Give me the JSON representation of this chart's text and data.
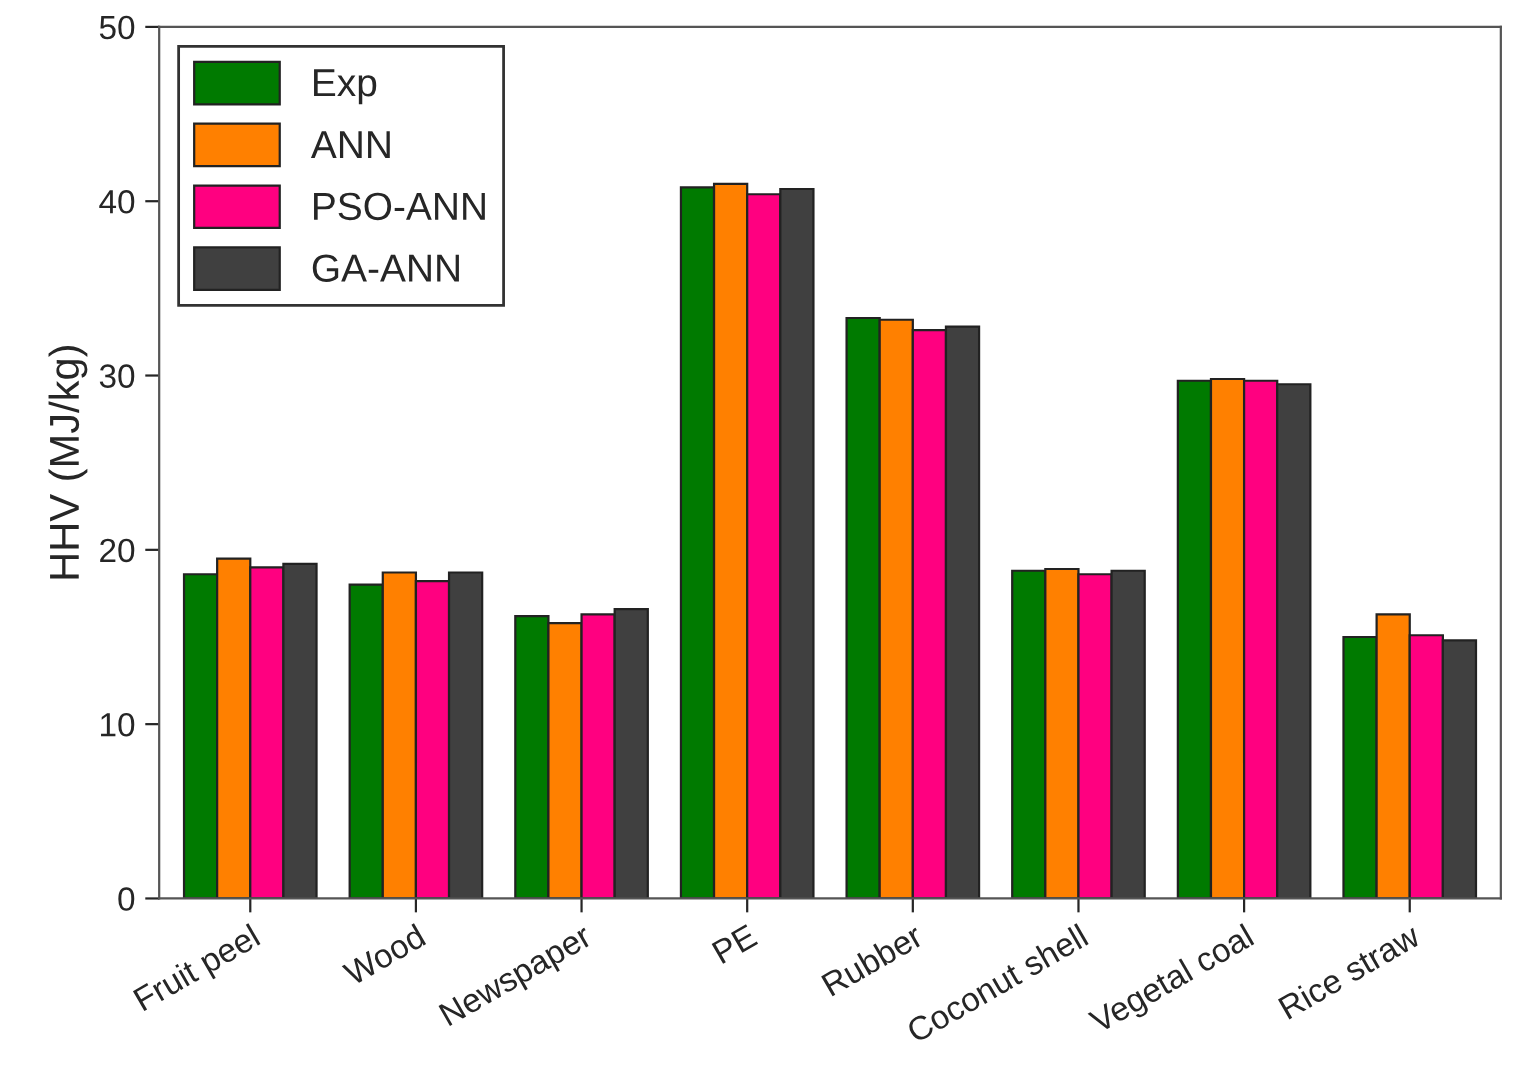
{
  "chart_data": {
    "type": "bar",
    "ylabel": "HHV (MJ/kg)",
    "categories": [
      "Fruit peel",
      "Wood",
      "Newspaper",
      "PE",
      "Rubber",
      "Coconut shell",
      "Vegetal coal",
      "Rice straw"
    ],
    "series": [
      {
        "name": "Exp",
        "color": "#007a00",
        "values": [
          18.6,
          18.0,
          16.2,
          40.8,
          33.3,
          18.8,
          29.7,
          15.0
        ]
      },
      {
        "name": "ANN",
        "color": "#ff8000",
        "values": [
          19.5,
          18.7,
          15.8,
          41.0,
          33.2,
          18.9,
          29.8,
          16.3
        ]
      },
      {
        "name": "PSO-ANN",
        "color": "#ff0080",
        "values": [
          19.0,
          18.2,
          16.3,
          40.4,
          32.6,
          18.6,
          29.7,
          15.1
        ]
      },
      {
        "name": "GA-ANN",
        "color": "#404040",
        "values": [
          19.2,
          18.7,
          16.6,
          40.7,
          32.8,
          18.8,
          29.5,
          14.8
        ]
      }
    ],
    "ylim": [
      0,
      50
    ],
    "yticks": [
      0,
      10,
      20,
      30,
      40,
      50
    ],
    "legend": "top left",
    "grid": false
  }
}
